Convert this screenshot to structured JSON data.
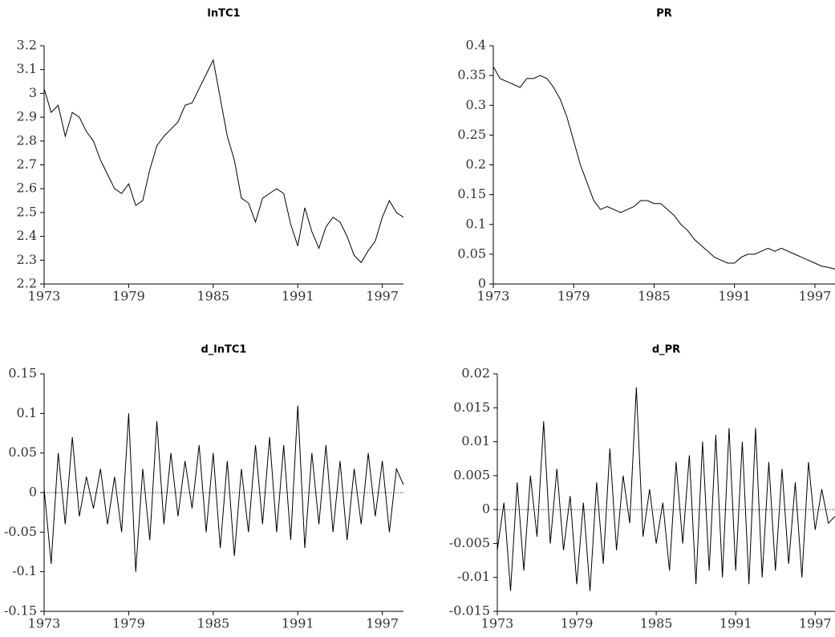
{
  "chart_data": [
    {
      "type": "line",
      "title": "lnTC1",
      "color": "#000000",
      "x": [
        1973,
        1973.5,
        1974,
        1974.5,
        1975,
        1975.5,
        1976,
        1976.5,
        1977,
        1977.5,
        1978,
        1978.5,
        1979,
        1979.5,
        1980,
        1980.5,
        1981,
        1981.5,
        1982,
        1982.5,
        1983,
        1983.5,
        1984,
        1984.5,
        1985,
        1985.5,
        1986,
        1986.5,
        1987,
        1987.5,
        1988,
        1988.5,
        1989,
        1989.5,
        1990,
        1990.5,
        1991,
        1991.5,
        1992,
        1992.5,
        1993,
        1993.5,
        1994,
        1994.5,
        1995,
        1995.5,
        1996,
        1996.5,
        1997,
        1997.5,
        1998,
        1998.5
      ],
      "values": [
        3.02,
        2.92,
        2.95,
        2.82,
        2.92,
        2.9,
        2.84,
        2.8,
        2.72,
        2.66,
        2.6,
        2.58,
        2.62,
        2.53,
        2.55,
        2.68,
        2.78,
        2.82,
        2.85,
        2.88,
        2.95,
        2.96,
        3.02,
        3.08,
        3.14,
        2.98,
        2.82,
        2.72,
        2.56,
        2.54,
        2.46,
        2.56,
        2.58,
        2.6,
        2.58,
        2.45,
        2.36,
        2.52,
        2.42,
        2.35,
        2.44,
        2.48,
        2.46,
        2.4,
        2.32,
        2.29,
        2.34,
        2.38,
        2.48,
        2.55,
        2.5,
        2.48
      ],
      "xlim": [
        1973,
        1998.5
      ],
      "ylim": [
        2.2,
        3.2
      ],
      "xticks": [
        1973,
        1979,
        1985,
        1991,
        1997
      ],
      "yticks": [
        2.2,
        2.3,
        2.4,
        2.5,
        2.6,
        2.7,
        2.8,
        2.9,
        3,
        3.1,
        3.2
      ]
    },
    {
      "type": "line",
      "title": "PR",
      "color": "#000000",
      "x": [
        1973,
        1973.5,
        1974,
        1974.5,
        1975,
        1975.5,
        1976,
        1976.5,
        1977,
        1977.5,
        1978,
        1978.5,
        1979,
        1979.5,
        1980,
        1980.5,
        1981,
        1981.5,
        1982,
        1982.5,
        1983,
        1983.5,
        1984,
        1984.5,
        1985,
        1985.5,
        1986,
        1986.5,
        1987,
        1987.5,
        1988,
        1988.5,
        1989,
        1989.5,
        1990,
        1990.5,
        1991,
        1991.5,
        1992,
        1992.5,
        1993,
        1993.5,
        1994,
        1994.5,
        1995,
        1995.5,
        1996,
        1996.5,
        1997,
        1997.5,
        1998,
        1998.5
      ],
      "values": [
        0.365,
        0.345,
        0.34,
        0.335,
        0.33,
        0.345,
        0.345,
        0.35,
        0.345,
        0.33,
        0.31,
        0.28,
        0.24,
        0.2,
        0.17,
        0.14,
        0.125,
        0.13,
        0.125,
        0.12,
        0.125,
        0.13,
        0.14,
        0.14,
        0.135,
        0.135,
        0.125,
        0.115,
        0.1,
        0.09,
        0.075,
        0.065,
        0.055,
        0.045,
        0.04,
        0.035,
        0.035,
        0.045,
        0.05,
        0.05,
        0.055,
        0.06,
        0.055,
        0.06,
        0.055,
        0.05,
        0.045,
        0.04,
        0.035,
        0.03,
        0.028,
        0.025
      ],
      "xlim": [
        1973,
        1998.5
      ],
      "ylim": [
        0,
        0.4
      ],
      "xticks": [
        1973,
        1979,
        1985,
        1991,
        1997
      ],
      "yticks": [
        0,
        0.05,
        0.1,
        0.15,
        0.2,
        0.25,
        0.3,
        0.35,
        0.4
      ]
    },
    {
      "type": "line",
      "title": "d_lnTC1",
      "color": "#000000",
      "reference_line": 0,
      "x": [
        1973,
        1973.5,
        1974,
        1974.5,
        1975,
        1975.5,
        1976,
        1976.5,
        1977,
        1977.5,
        1978,
        1978.5,
        1979,
        1979.5,
        1980,
        1980.5,
        1981,
        1981.5,
        1982,
        1982.5,
        1983,
        1983.5,
        1984,
        1984.5,
        1985,
        1985.5,
        1986,
        1986.5,
        1987,
        1987.5,
        1988,
        1988.5,
        1989,
        1989.5,
        1990,
        1990.5,
        1991,
        1991.5,
        1992,
        1992.5,
        1993,
        1993.5,
        1994,
        1994.5,
        1995,
        1995.5,
        1996,
        1996.5,
        1997,
        1997.5,
        1998,
        1998.5
      ],
      "values": [
        0.005,
        -0.09,
        0.05,
        -0.04,
        0.07,
        -0.03,
        0.02,
        -0.02,
        0.03,
        -0.04,
        0.02,
        -0.05,
        0.1,
        -0.1,
        0.03,
        -0.06,
        0.09,
        -0.04,
        0.05,
        -0.03,
        0.04,
        -0.02,
        0.06,
        -0.05,
        0.05,
        -0.07,
        0.04,
        -0.08,
        0.03,
        -0.05,
        0.06,
        -0.04,
        0.07,
        -0.05,
        0.06,
        -0.06,
        0.11,
        -0.07,
        0.05,
        -0.04,
        0.06,
        -0.05,
        0.04,
        -0.06,
        0.03,
        -0.04,
        0.05,
        -0.03,
        0.04,
        -0.05,
        0.03,
        0.01
      ],
      "xlim": [
        1973,
        1998.5
      ],
      "ylim": [
        -0.15,
        0.15
      ],
      "xticks": [
        1973,
        1979,
        1985,
        1991,
        1997
      ],
      "yticks": [
        -0.15,
        -0.1,
        -0.05,
        0,
        0.05,
        0.1,
        0.15
      ]
    },
    {
      "type": "line",
      "title": "d_PR",
      "color": "#000000",
      "reference_line": 0,
      "x": [
        1973,
        1973.5,
        1974,
        1974.5,
        1975,
        1975.5,
        1976,
        1976.5,
        1977,
        1977.5,
        1978,
        1978.5,
        1979,
        1979.5,
        1980,
        1980.5,
        1981,
        1981.5,
        1982,
        1982.5,
        1983,
        1983.5,
        1984,
        1984.5,
        1985,
        1985.5,
        1986,
        1986.5,
        1987,
        1987.5,
        1988,
        1988.5,
        1989,
        1989.5,
        1990,
        1990.5,
        1991,
        1991.5,
        1992,
        1992.5,
        1993,
        1993.5,
        1994,
        1994.5,
        1995,
        1995.5,
        1996,
        1996.5,
        1997,
        1997.5,
        1998,
        1998.5
      ],
      "values": [
        -0.006,
        0.001,
        -0.012,
        0.004,
        -0.009,
        0.005,
        -0.004,
        0.013,
        -0.005,
        0.006,
        -0.006,
        0.002,
        -0.011,
        0.001,
        -0.012,
        0.004,
        -0.008,
        0.009,
        -0.006,
        0.005,
        -0.002,
        0.018,
        -0.004,
        0.003,
        -0.005,
        0.001,
        -0.009,
        0.007,
        -0.005,
        0.008,
        -0.011,
        0.01,
        -0.009,
        0.011,
        -0.01,
        0.012,
        -0.009,
        0.01,
        -0.011,
        0.012,
        -0.01,
        0.007,
        -0.009,
        0.006,
        -0.008,
        0.004,
        -0.01,
        0.007,
        -0.003,
        0.003,
        -0.002,
        -0.001
      ],
      "xlim": [
        1973,
        1998.5
      ],
      "ylim": [
        -0.015,
        0.02
      ],
      "xticks": [
        1973,
        1979,
        1985,
        1991,
        1997
      ],
      "yticks": [
        -0.015,
        -0.01,
        -0.005,
        0,
        0.005,
        0.01,
        0.015,
        0.02
      ]
    }
  ]
}
